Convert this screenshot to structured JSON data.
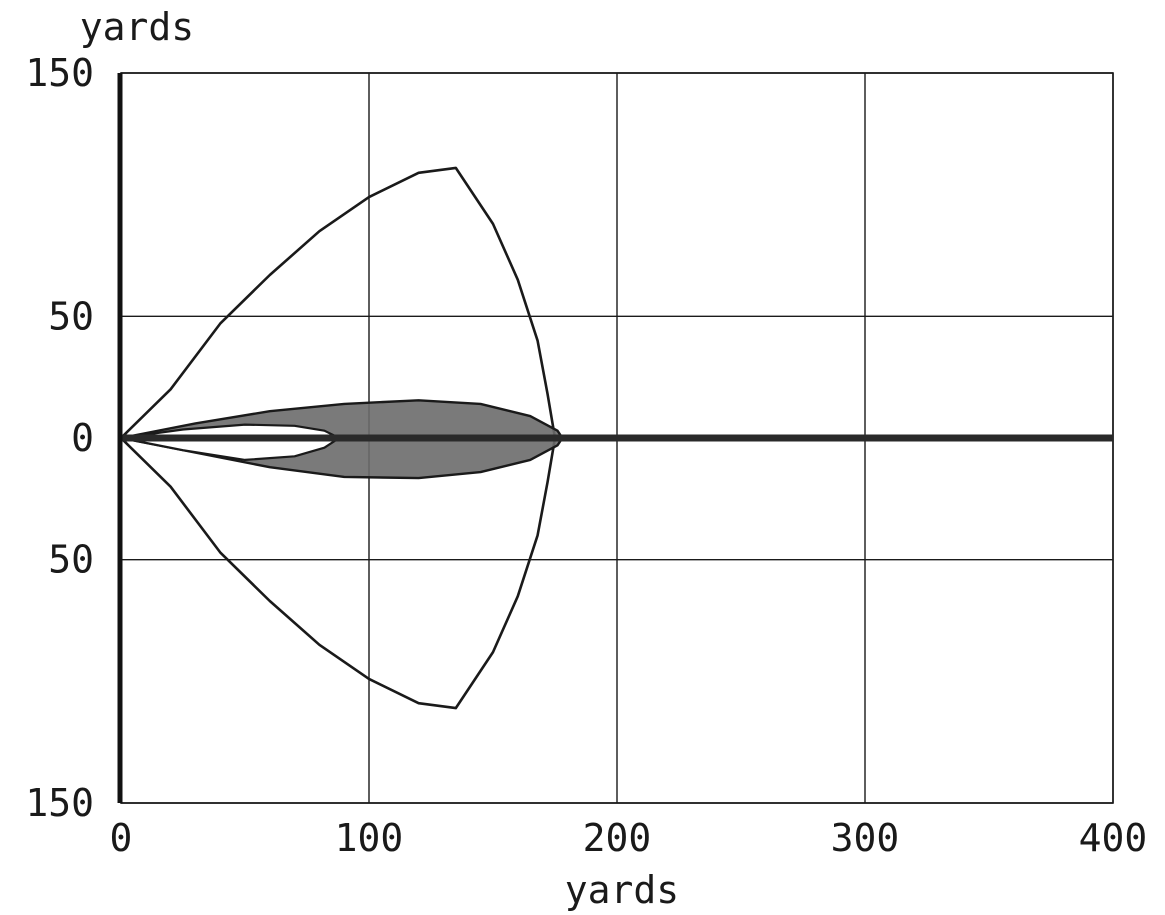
{
  "chart_data": {
    "type": "area",
    "title": "",
    "xlabel": "yards",
    "ylabel": "yards",
    "xlim": [
      0,
      400
    ],
    "ylim": [
      -150,
      150
    ],
    "grid": true,
    "x_ticks": [
      {
        "value": 0,
        "label": "0"
      },
      {
        "value": 100,
        "label": "100"
      },
      {
        "value": 200,
        "label": "200"
      },
      {
        "value": 300,
        "label": "300"
      },
      {
        "value": 400,
        "label": "400"
      }
    ],
    "y_ticks": [
      {
        "value": 150,
        "label": "150"
      },
      {
        "value": 50,
        "label": "50"
      },
      {
        "value": 0,
        "label": "0"
      },
      {
        "value": -50,
        "label": "50"
      },
      {
        "value": -150,
        "label": "150"
      }
    ],
    "series": [
      {
        "style": "outline",
        "color": "#1a1a1a",
        "points": [
          [
            0,
            0
          ],
          [
            20,
            20
          ],
          [
            40,
            47
          ],
          [
            60,
            67
          ],
          [
            80,
            85
          ],
          [
            100,
            99
          ],
          [
            120,
            109
          ],
          [
            135,
            111
          ],
          [
            150,
            88
          ],
          [
            160,
            65
          ],
          [
            168,
            40
          ],
          [
            172,
            18
          ],
          [
            175,
            0
          ],
          [
            172,
            -18
          ],
          [
            168,
            -40
          ],
          [
            160,
            -65
          ],
          [
            150,
            -88
          ],
          [
            135,
            -111
          ],
          [
            120,
            -109
          ],
          [
            100,
            -99
          ],
          [
            80,
            -85
          ],
          [
            60,
            -67
          ],
          [
            40,
            -47
          ],
          [
            20,
            -20
          ],
          [
            0,
            0
          ]
        ]
      },
      {
        "style": "filled",
        "color": "#6b6b6b",
        "points": [
          [
            0,
            0
          ],
          [
            30,
            6
          ],
          [
            60,
            11
          ],
          [
            90,
            14
          ],
          [
            120,
            15.5
          ],
          [
            145,
            14
          ],
          [
            165,
            9
          ],
          [
            176,
            3
          ],
          [
            178,
            0
          ],
          [
            176,
            -3
          ],
          [
            165,
            -9
          ],
          [
            145,
            -14
          ],
          [
            120,
            -16.5
          ],
          [
            90,
            -16
          ],
          [
            60,
            -12
          ],
          [
            30,
            -6
          ],
          [
            0,
            0
          ]
        ]
      },
      {
        "style": "hole",
        "color": "#ffffff",
        "points": [
          [
            0,
            0
          ],
          [
            25,
            3.5
          ],
          [
            50,
            5.5
          ],
          [
            70,
            5
          ],
          [
            82,
            3
          ],
          [
            88,
            0
          ],
          [
            82,
            -4
          ],
          [
            70,
            -7.5
          ],
          [
            50,
            -9
          ],
          [
            25,
            -5
          ],
          [
            0,
            0
          ]
        ]
      },
      {
        "style": "line",
        "color": "#2a2a2a",
        "points": [
          [
            0,
            0
          ],
          [
            400,
            0
          ]
        ]
      }
    ]
  }
}
